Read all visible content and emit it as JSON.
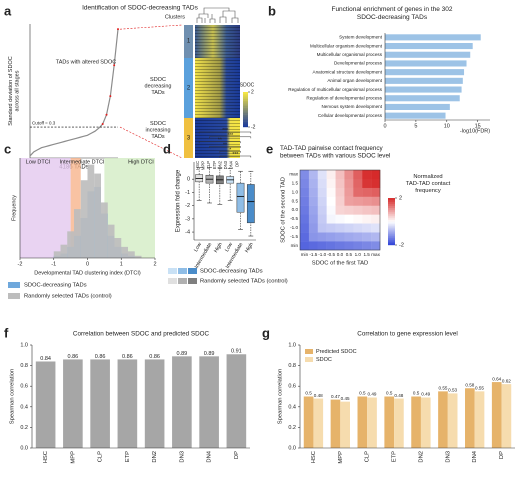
{
  "chart_data": [
    {
      "panel": "a",
      "type": "line",
      "title": "Identification of SDOC-decreasing TADs",
      "ylabel": "Standard deviation of SDOC across all stages",
      "xlabel": "4186 TADs",
      "values": [
        0.02,
        0.06,
        0.08,
        0.1,
        0.11,
        0.12,
        0.13,
        0.14,
        0.15,
        0.16,
        0.17,
        0.18,
        0.19,
        0.2,
        0.21,
        0.22,
        0.24,
        0.26,
        0.29,
        0.33,
        0.42,
        0.6,
        0.9,
        1.25
      ],
      "ylim": [
        0,
        1.3
      ],
      "color": "#8c8c8c",
      "highlight_color": "#e02020",
      "cutoff": 0.3,
      "cutoff_label": "Cutoff = 0.3",
      "annotation": "TADs with altered SDOC",
      "clusters_label": "Clusters",
      "clusters": [
        "1",
        "2",
        "3"
      ],
      "cluster_labels": [
        "SDOC decreasing TADs",
        "SDOC increasing TADs"
      ],
      "cluster_label_colors": [
        "#4a90d9",
        "#e0a020"
      ],
      "heatmap_columns": [
        "HSC",
        "MPP",
        "CLP",
        "ETP",
        "DN2",
        "DN3",
        "DN4",
        "DP"
      ],
      "colorbar": {
        "label": "SDOC",
        "ticks": [
          2,
          -2
        ],
        "colors": [
          "#f5e642",
          "#1a3a9a"
        ]
      }
    },
    {
      "panel": "b",
      "type": "bar",
      "horizontal": true,
      "title": "Functional enrichment of genes in the 302 SDOC-decreasing TADs",
      "categories": [
        "System development",
        "Multicellular organism development",
        "Multicellular organismal process",
        "Developmental process",
        "Anatomical structure development",
        "Animal organ development",
        "Regulation of multicellular organismal process",
        "Regulation of developmental process",
        "Nervous system development",
        "Cellular developmental process"
      ],
      "values": [
        15.5,
        14.2,
        13.8,
        13.2,
        12.8,
        12.6,
        12.4,
        12.1,
        10.5,
        9.8
      ],
      "color": "#9dc3e6",
      "xlabel": "-log10(FDR)",
      "xlim": [
        0,
        17
      ],
      "xticks": [
        0,
        5,
        10,
        15
      ]
    },
    {
      "panel": "c",
      "type": "histogram",
      "xlabel": "Developmental TAD clustering index (DTCI)",
      "ylabel": "Frequency",
      "bins": [
        -1,
        -0.8,
        -0.6,
        -0.4,
        -0.2,
        0,
        0.2,
        0.4,
        0.6,
        0.8,
        1,
        1.2,
        1.4,
        1.6
      ],
      "series": [
        {
          "name": "SDOC-decreasing TADs",
          "color": "#6fa8dc",
          "counts": [
            1,
            2,
            5,
            10,
            18,
            30,
            32,
            20,
            10,
            5,
            2,
            1,
            0
          ]
        },
        {
          "name": "Randomly selected TADs (control)",
          "color": "#bdbdbd",
          "counts": [
            3,
            6,
            12,
            22,
            35,
            42,
            38,
            25,
            15,
            9,
            5,
            3,
            1
          ]
        }
      ],
      "regions": [
        {
          "name": "Low DTCI",
          "from": -2,
          "to": -0.5,
          "color": "#e3c8ef",
          "label_color": "#7a3aa0"
        },
        {
          "name": "Intermediate DTCI",
          "from": -0.5,
          "to": -0.2,
          "color": "#f7b48c",
          "label_color": "#e0701a"
        },
        {
          "name": "High DTCI",
          "from": 0.5,
          "to": 2,
          "color": "#d3ecc4",
          "label_color": "#4ea72a"
        }
      ],
      "xlim": [
        -2,
        2
      ],
      "xticks": [
        -2,
        -1,
        0,
        1,
        2
      ],
      "ylim": [
        0,
        45
      ]
    },
    {
      "panel": "d",
      "type": "box",
      "ylabel": "Expression fold change",
      "categories": [
        "Low",
        "Intermediate",
        "High"
      ],
      "series": [
        {
          "name": "Randomly selected TADs (control)",
          "colors": [
            "#e0e0e0",
            "#b0b0b0",
            "#7f7f7f"
          ],
          "min": [
            -1.6,
            -1.8,
            -1.9
          ],
          "q1": [
            -0.2,
            -0.3,
            -0.35
          ],
          "median": [
            0.05,
            0,
            -0.05
          ],
          "q3": [
            0.35,
            0.3,
            0.25
          ],
          "max": [
            0.9,
            0.9,
            0.85
          ]
        },
        {
          "name": "SDOC-decreasing TADs",
          "colors": [
            "#c9e1f5",
            "#8fbde6",
            "#4a8cc9"
          ],
          "min": [
            -1.6,
            -3.8,
            -4.3
          ],
          "q1": [
            -0.3,
            -2.5,
            -3.3
          ],
          "median": [
            -0.05,
            -1.3,
            -1.7
          ],
          "q3": [
            0.2,
            -0.3,
            -0.4
          ],
          "max": [
            0.8,
            0.6,
            0.6
          ]
        }
      ],
      "annotations": [
        {
          "text": "***",
          "from": 0,
          "to": 5
        },
        {
          "text": "***",
          "from": 1,
          "to": 5
        },
        {
          "text": "**",
          "from": 0,
          "to": 4
        },
        {
          "text": "**",
          "from": 1,
          "to": 4
        },
        {
          "text": "*",
          "from": 2,
          "to": 4
        },
        {
          "text": "***",
          "from": 2,
          "to": 5
        }
      ],
      "ylim": [
        -4.6,
        1.3
      ],
      "yticks": [
        0,
        -1,
        -2,
        -3,
        -4
      ]
    },
    {
      "panel": "e",
      "type": "heatmap",
      "title": "TAD-TAD pairwise contact frequency between TADs with various SDOC level",
      "xlabel": "SDOC of the first TAD",
      "ylabel": "SDOC of the second TAD",
      "categories": [
        "min",
        "-1.5",
        "-1.0",
        "-0.5",
        "0.0",
        "0.5",
        "1.0",
        "1.5",
        "max"
      ],
      "z": [
        [
          -1.6,
          -1.55,
          -1.5,
          -1.45,
          -1.4,
          -1.35,
          -1.3,
          -1.25,
          -1.2
        ],
        [
          -1.55,
          -1.1,
          -1.05,
          -1.0,
          -0.95,
          -0.9,
          -0.85,
          -0.8,
          -0.75
        ],
        [
          -1.5,
          -1.05,
          -0.6,
          -0.55,
          -0.5,
          -0.45,
          -0.4,
          -0.35,
          -0.3
        ],
        [
          -1.45,
          -1.0,
          -0.55,
          -0.1,
          -0.05,
          0,
          0.05,
          0.1,
          0.15
        ],
        [
          -1.4,
          -0.95,
          -0.5,
          -0.05,
          0.4,
          0.45,
          0.5,
          0.55,
          0.6
        ],
        [
          -1.35,
          -0.9,
          -0.45,
          0,
          0.45,
          0.9,
          0.95,
          1.0,
          1.05
        ],
        [
          -1.3,
          -0.85,
          -0.4,
          0.05,
          0.5,
          0.95,
          1.4,
          1.45,
          1.5
        ],
        [
          -1.25,
          -0.8,
          -0.35,
          0.1,
          0.55,
          1.0,
          1.45,
          1.9,
          1.95
        ],
        [
          -1.2,
          -0.75,
          -0.3,
          0.15,
          0.6,
          1.05,
          1.5,
          1.95,
          2.0
        ]
      ],
      "colorbar": {
        "label": "Normalized TAD-TAD contact frequency",
        "ticks": [
          2,
          -2
        ],
        "colors": [
          "#d62a2a",
          "#ffffff",
          "#2b3fd6"
        ]
      }
    },
    {
      "panel": "f",
      "type": "bar",
      "title": "Correlation between SDOC and predicted SDOC",
      "ylabel": "Spearman correlation",
      "categories": [
        "HSC",
        "MPP",
        "CLP",
        "ETP",
        "DN2",
        "DN3",
        "DN4",
        "DP"
      ],
      "values": [
        0.84,
        0.86,
        0.86,
        0.86,
        0.86,
        0.89,
        0.89,
        0.91
      ],
      "color": "#a6a6a6",
      "ylim": [
        0,
        1
      ],
      "yticks": [
        {
          "value": 0,
          "label": "0.0"
        },
        0.2,
        0.4,
        0.6,
        0.8,
        {
          "value": 1,
          "label": "1.0"
        }
      ]
    },
    {
      "panel": "g",
      "type": "bar",
      "title": "Correlation to gene expression level",
      "ylabel": "Spearman correlation",
      "categories": [
        "HSC",
        "MPP",
        "CLP",
        "ETP",
        "DN2",
        "DN3",
        "DN4",
        "DP"
      ],
      "series": [
        {
          "name": "Predicted SDOC",
          "color": "#e6b36a",
          "label_color": "#c98a2a",
          "values": [
            0.5,
            0.47,
            0.5,
            0.5,
            0.5,
            0.55,
            0.58,
            0.64
          ]
        },
        {
          "name": "SDOC",
          "color": "#f6dcae",
          "label_color": "#d9b57a",
          "values": [
            0.48,
            0.45,
            0.49,
            0.48,
            0.49,
            0.53,
            0.55,
            0.62
          ]
        }
      ],
      "ylim": [
        0,
        1
      ],
      "yticks": [
        {
          "value": 0,
          "label": "0.0"
        },
        0.2,
        0.4,
        0.6,
        0.8,
        {
          "value": 1,
          "label": "1.0"
        }
      ]
    }
  ]
}
